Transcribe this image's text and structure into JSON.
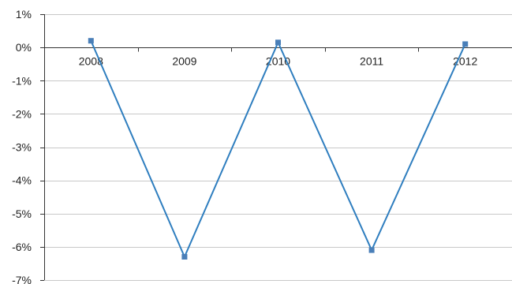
{
  "chart_data": {
    "type": "line",
    "title": "",
    "xlabel": "",
    "ylabel": "",
    "categories": [
      "2008",
      "2009",
      "2010",
      "2011",
      "2012"
    ],
    "series": [
      {
        "values": [
          0.2,
          -6.3,
          0.15,
          -6.1,
          0.1
        ]
      }
    ],
    "ylim": [
      -7,
      1
    ],
    "yticks": [
      1,
      0,
      -1,
      -2,
      -3,
      -4,
      -5,
      -6,
      -7
    ],
    "ytick_labels": [
      "1%",
      "0%",
      "-1%",
      "-2%",
      "-3%",
      "-4%",
      "-5%",
      "-6%",
      "-7%"
    ],
    "y_unit": "%",
    "grid": true,
    "legend": "none",
    "colors": {
      "line": "#2f7ebf",
      "marker": "#4a7fb8",
      "grid": "#c8c8c8",
      "axis": "#333333"
    }
  }
}
